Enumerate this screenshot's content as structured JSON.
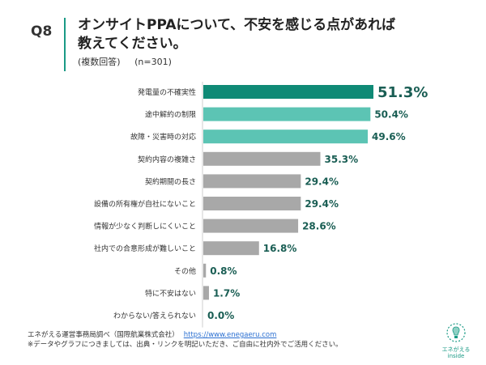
{
  "header": {
    "question_number": "Q8",
    "title": "オンサイトPPAについて、不安を感じる点があれば\n教えてください。",
    "note": "(複数回答)",
    "sample": "(n=301)"
  },
  "colors": {
    "accent_dark": "#0f8a76",
    "accent_light": "#5cc4b4",
    "bar_gray": "#a8a8a8",
    "value_text": "#1a5e54"
  },
  "chart_data": {
    "type": "bar",
    "orientation": "horizontal",
    "categories": [
      "発電量の不確実性",
      "途中解約の制限",
      "故障・災害時の対応",
      "契約内容の複雑さ",
      "契約期間の長さ",
      "設備の所有権が自社にないこと",
      "情報が少なく判断しにくいこと",
      "社内での合意形成が難しいこと",
      "その他",
      "特に不安はない",
      "わからない/答えられない"
    ],
    "values": [
      51.3,
      50.4,
      49.6,
      35.3,
      29.4,
      29.4,
      28.6,
      16.8,
      0.8,
      1.7,
      0.0
    ],
    "value_labels": [
      "51.3%",
      "50.4%",
      "49.6%",
      "35.3%",
      "29.4%",
      "29.4%",
      "28.6%",
      "16.8%",
      "0.8%",
      "1.7%",
      "0.0%"
    ],
    "bar_styles": [
      "dark",
      "light",
      "light",
      "gray",
      "gray",
      "gray",
      "gray",
      "gray",
      "gray",
      "gray",
      "gray"
    ],
    "xlim": [
      0,
      51.3
    ],
    "grid": false,
    "legend": "none"
  },
  "footer": {
    "source": "エネがえる運営事務局調べ（国際航業株式会社）",
    "url": "https://www.enegaeru.com",
    "notice": "※データやグラフにつきましては、出典・リンクを明記いただき、ご自由に社内外でご活用ください。"
  },
  "logo": {
    "line1": "エネがえる",
    "line2": "inside"
  }
}
